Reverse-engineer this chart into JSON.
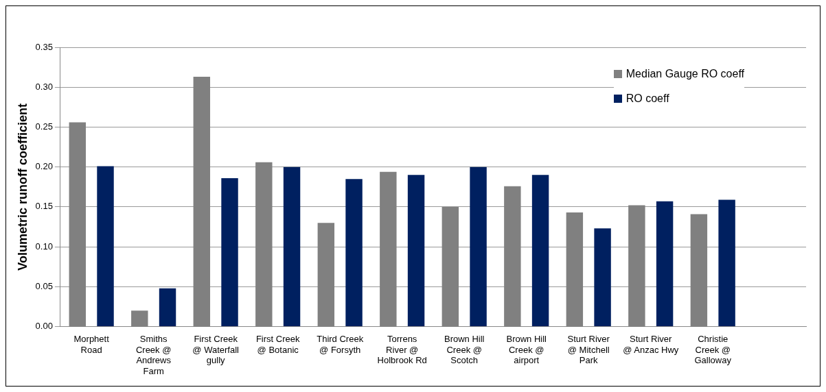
{
  "chart_data": {
    "type": "bar",
    "ylabel": "Volumetric runoff coefficient",
    "categories": [
      "Morphett Road",
      "Smiths Creek @ Andrews Farm",
      "First Creek @ Waterfall gully",
      "First Creek @ Botanic",
      "Third Creek @ Forsyth",
      "Torrens River @ Holbrook Rd",
      "Brown Hill Creek @ Scotch",
      "Brown Hill Creek @ airport",
      "Sturt River @ Mitchell Park",
      "Sturt River @ Anzac Hwy",
      "Christie Creek @ Galloway",
      null
    ],
    "series": [
      {
        "name": "Median Gauge RO coeff",
        "color": "#808080",
        "values": [
          0.256,
          0.02,
          0.313,
          0.206,
          0.13,
          0.194,
          0.15,
          0.176,
          0.143,
          0.152,
          0.141,
          null
        ]
      },
      {
        "name": "RO coeff",
        "color": "#002060",
        "values": [
          0.201,
          0.048,
          0.186,
          0.2,
          0.185,
          0.19,
          0.2,
          0.19,
          0.123,
          0.157,
          0.159,
          null
        ]
      }
    ],
    "ylim": [
      0,
      0.35
    ],
    "yticks": [
      {
        "value": 0,
        "label": "0.00"
      },
      {
        "value": 0.05,
        "label": "0.05"
      },
      {
        "value": 0.1,
        "label": "0.10"
      },
      {
        "value": 0.15,
        "label": "0.15"
      },
      {
        "value": 0.2,
        "label": "0.20"
      },
      {
        "value": 0.25,
        "label": "0.25"
      },
      {
        "value": 0.3,
        "label": "0.30"
      },
      {
        "value": 0.35,
        "label": "0.35"
      }
    ],
    "grid": "y",
    "legend": "top right"
  }
}
